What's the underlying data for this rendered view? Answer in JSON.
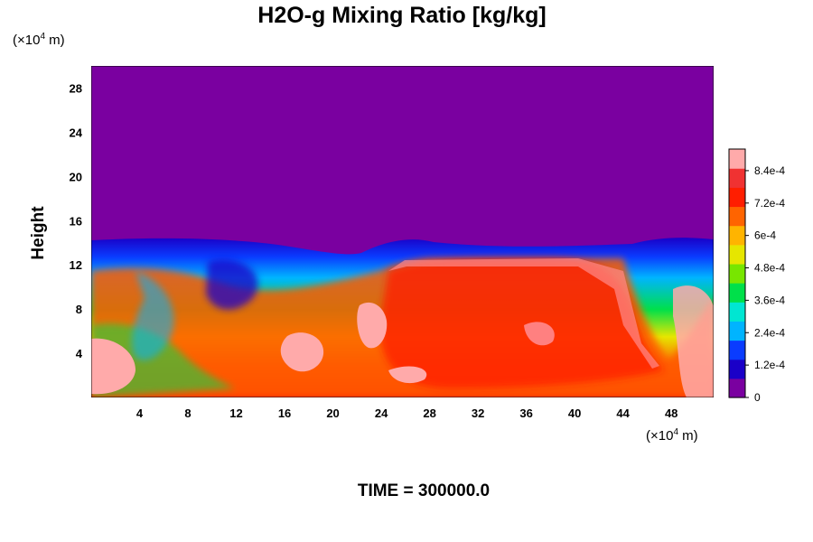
{
  "chart_data": {
    "type": "heatmap",
    "title": "H2O-g Mixing Ratio [kg/kg]",
    "ylabel": "Height",
    "x_unit": {
      "prefix": "(×10",
      "exp": "4",
      "suffix": " m)"
    },
    "y_unit": {
      "prefix": "(×10",
      "exp": "4",
      "suffix": " m)"
    },
    "xlim": [
      0,
      51.5
    ],
    "ylim": [
      0,
      30
    ],
    "x_ticks": [
      4,
      8,
      12,
      16,
      20,
      24,
      28,
      32,
      36,
      40,
      44,
      48
    ],
    "y_ticks": [
      4,
      8,
      12,
      16,
      20,
      24,
      28
    ],
    "colorbar": {
      "range": [
        0,
        0.00092
      ],
      "tick_values": [
        0,
        0.00012,
        0.00024,
        0.00036,
        0.00048,
        0.0006,
        0.00072,
        0.00084
      ],
      "tick_labels": [
        "0",
        "1.2e-4",
        "2.4e-4",
        "3.6e-4",
        "4.8e-4",
        "6e-4",
        "7.2e-4",
        "8.4e-4"
      ],
      "colors": [
        "#7a00a0",
        "#1a00c8",
        "#0a3cff",
        "#00b4ff",
        "#00e6d2",
        "#00e04a",
        "#78e600",
        "#e6e600",
        "#ffb400",
        "#ff6400",
        "#ff1e00",
        "#f03232",
        "#ffaaaa"
      ]
    },
    "background_value_color": "#7a00a0",
    "footer": "TIME = 300000.0"
  }
}
